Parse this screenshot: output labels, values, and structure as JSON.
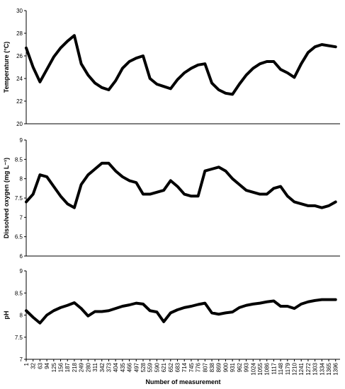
{
  "chart_data": [
    {
      "type": "line",
      "ylabel": "Temperature (°C)",
      "color": "#000000",
      "x": [
        1,
        32,
        63,
        94,
        125,
        156,
        187,
        218,
        249,
        280,
        311,
        342,
        373,
        404,
        435,
        466,
        497,
        528,
        559,
        590,
        621,
        652,
        683,
        714,
        745,
        776,
        807,
        838,
        869,
        900,
        931,
        962,
        993,
        1024,
        1055,
        1086,
        1117,
        1148,
        1179,
        1210,
        1241,
        1272,
        1303,
        1334,
        1365,
        1396
      ],
      "values": [
        26.7,
        25.0,
        23.7,
        24.8,
        25.9,
        26.7,
        27.3,
        27.8,
        25.3,
        24.3,
        23.6,
        23.2,
        23.0,
        23.8,
        24.9,
        25.5,
        25.8,
        26.0,
        24.0,
        23.5,
        23.3,
        23.1,
        23.9,
        24.5,
        24.9,
        25.2,
        25.3,
        23.6,
        23.0,
        22.7,
        22.6,
        23.5,
        24.3,
        24.9,
        25.3,
        25.5,
        25.5,
        24.8,
        24.5,
        24.1,
        25.3,
        26.3,
        26.8,
        27.0,
        26.9,
        26.8
      ],
      "xlim": [
        1,
        1416
      ],
      "ylim": [
        20,
        30
      ],
      "yticks": [
        20,
        22,
        24,
        26,
        28,
        30
      ]
    },
    {
      "type": "line",
      "ylabel": "Dissolved oxygen (mg L⁻¹)",
      "color": "#000000",
      "x": [
        1,
        32,
        63,
        94,
        125,
        156,
        187,
        218,
        249,
        280,
        311,
        342,
        373,
        404,
        435,
        466,
        497,
        528,
        559,
        590,
        621,
        652,
        683,
        714,
        745,
        776,
        807,
        838,
        869,
        900,
        931,
        962,
        993,
        1024,
        1055,
        1086,
        1117,
        1148,
        1179,
        1210,
        1241,
        1272,
        1303,
        1334,
        1365,
        1396
      ],
      "values": [
        7.4,
        7.6,
        8.1,
        8.05,
        7.8,
        7.55,
        7.35,
        7.25,
        7.85,
        8.1,
        8.25,
        8.4,
        8.4,
        8.2,
        8.05,
        7.95,
        7.9,
        7.6,
        7.6,
        7.65,
        7.7,
        7.95,
        7.8,
        7.6,
        7.55,
        7.55,
        8.2,
        8.25,
        8.3,
        8.2,
        8.0,
        7.85,
        7.7,
        7.65,
        7.6,
        7.6,
        7.75,
        7.8,
        7.55,
        7.4,
        7.35,
        7.3,
        7.3,
        7.25,
        7.3,
        7.4
      ],
      "xlim": [
        1,
        1416
      ],
      "ylim": [
        6,
        9
      ],
      "yticks": [
        6,
        6.5,
        7,
        7.5,
        8,
        8.5,
        9
      ]
    },
    {
      "type": "line",
      "ylabel": "pH",
      "xlabel": "Number of measurement",
      "color": "#000000",
      "x": [
        1,
        32,
        63,
        94,
        125,
        156,
        187,
        218,
        249,
        280,
        311,
        342,
        373,
        404,
        435,
        466,
        497,
        528,
        559,
        590,
        621,
        652,
        683,
        714,
        745,
        776,
        807,
        838,
        869,
        900,
        931,
        962,
        993,
        1024,
        1055,
        1086,
        1117,
        1148,
        1179,
        1210,
        1241,
        1272,
        1303,
        1334,
        1365,
        1396
      ],
      "values": [
        8.1,
        7.95,
        7.82,
        8.0,
        8.1,
        8.17,
        8.22,
        8.28,
        8.15,
        7.98,
        8.08,
        8.08,
        8.1,
        8.15,
        8.2,
        8.23,
        8.27,
        8.25,
        8.1,
        8.07,
        7.85,
        8.05,
        8.12,
        8.17,
        8.2,
        8.24,
        8.27,
        8.05,
        8.02,
        8.05,
        8.07,
        8.17,
        8.22,
        8.25,
        8.27,
        8.3,
        8.32,
        8.2,
        8.2,
        8.15,
        8.25,
        8.3,
        8.33,
        8.35,
        8.35,
        8.35
      ],
      "xlim": [
        1,
        1416
      ],
      "ylim": [
        7,
        9
      ],
      "yticks": [
        7,
        7.5,
        8,
        8.5,
        9
      ],
      "xticks": [
        1,
        32,
        63,
        94,
        125,
        156,
        187,
        218,
        249,
        280,
        311,
        342,
        373,
        404,
        435,
        466,
        497,
        528,
        559,
        590,
        621,
        652,
        683,
        714,
        745,
        776,
        807,
        838,
        869,
        900,
        931,
        962,
        993,
        1024,
        1055,
        1086,
        1117,
        1148,
        1179,
        1210,
        1241,
        1272,
        1303,
        1334,
        1365,
        1396
      ]
    }
  ]
}
